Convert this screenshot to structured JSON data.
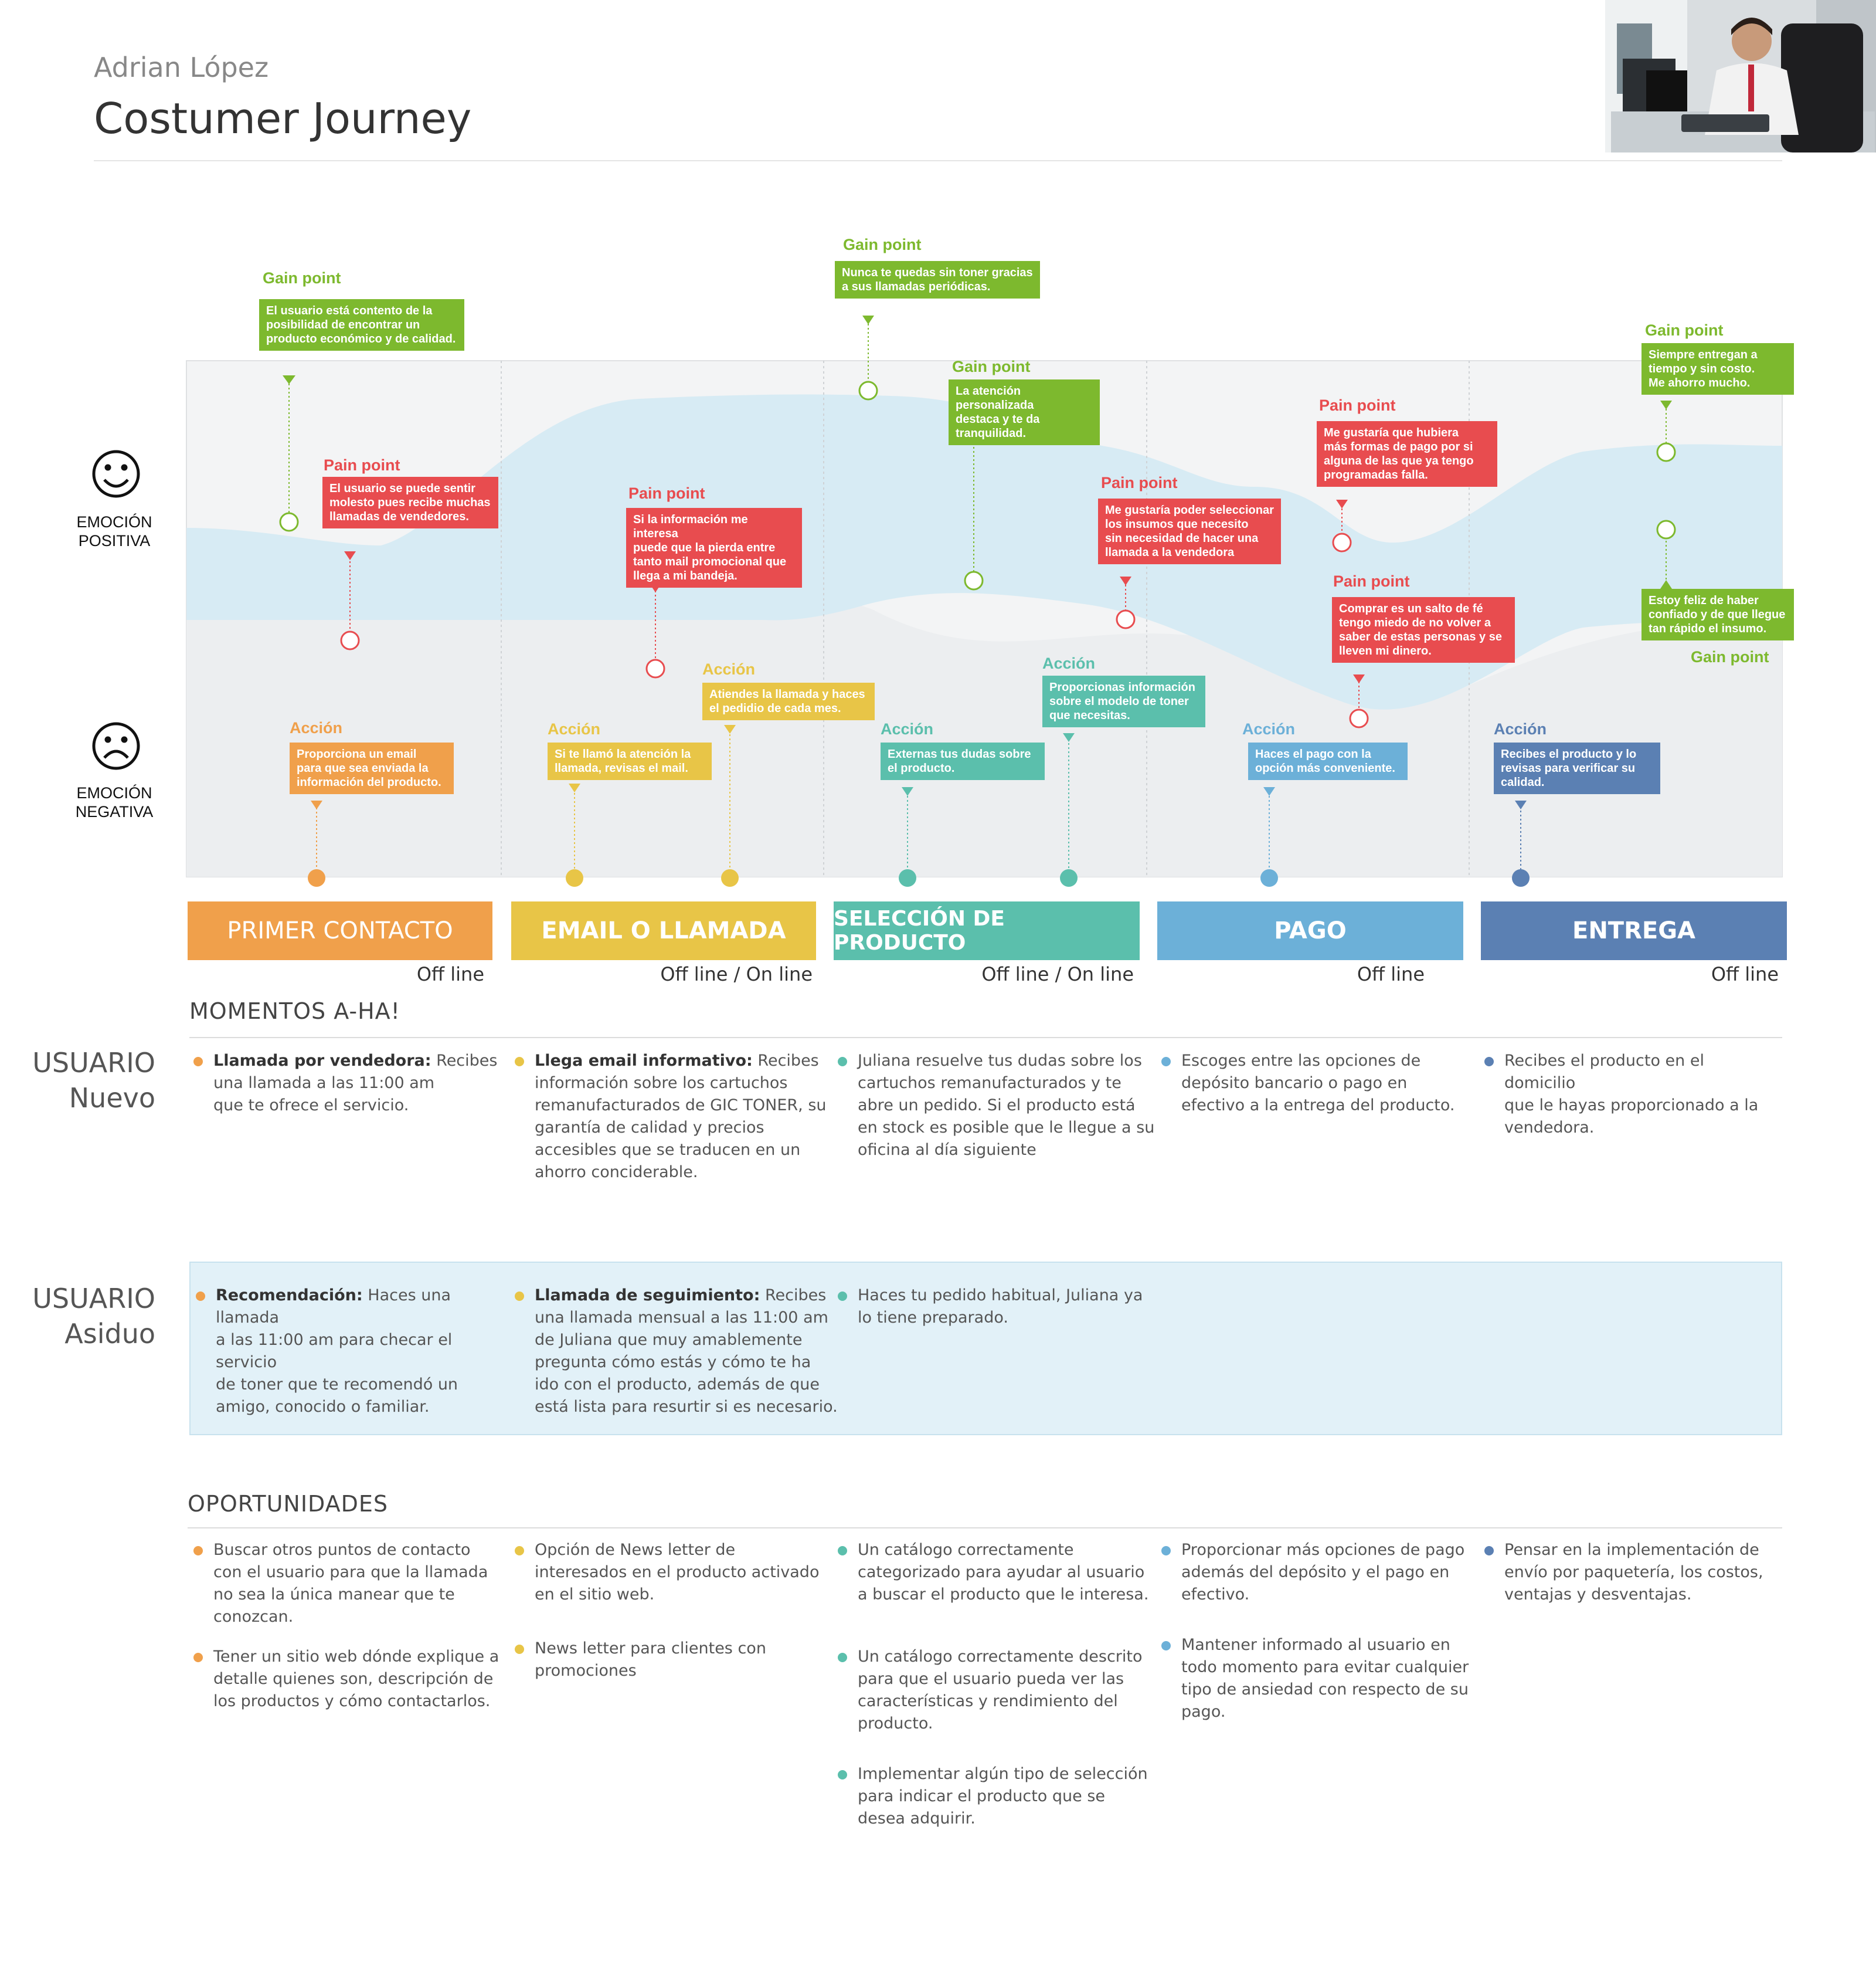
{
  "header": {
    "author": "Adrian López",
    "title": "Costumer Journey",
    "photo": "person-at-desk-photo"
  },
  "emotions": {
    "positive": [
      "EMOCIÓN",
      "POSITIVA"
    ],
    "negative": [
      "EMOCIÓN",
      "NEGATIVA"
    ]
  },
  "colors": {
    "primer_contacto": "#f0a04b",
    "email_llamada": "#e8c547",
    "seleccion": "#5bbfac",
    "pago": "#6cb0d8",
    "entrega": "#5b80b3",
    "gain": "#7db92e",
    "pain": "#e84c4f",
    "band": "#d7ebf4",
    "neutral": "#eceef0"
  },
  "callouts": [
    {
      "kind": "gain",
      "title": "Gain point",
      "lines": [
        "El usuario está contento de la",
        "posibilidad de encontrar un",
        "producto económico y de calidad."
      ]
    },
    {
      "kind": "pain",
      "title": "Pain point",
      "lines": [
        "El usuario se puede sentir",
        "molesto pues recibe muchas",
        "llamadas de vendedores."
      ]
    },
    {
      "kind": "action1",
      "title": "Acción",
      "lines": [
        "Proporciona un email",
        "para que sea enviada la",
        "información del producto."
      ]
    },
    {
      "kind": "action2",
      "title": "Acción",
      "lines": [
        "Si te llamó la atención la",
        "llamada, revisas el mail."
      ]
    },
    {
      "kind": "pain",
      "title": "Pain point",
      "lines": [
        "Si la información me interesa",
        "puede que la pierda entre",
        "tanto mail promocional que",
        "llega a mi bandeja."
      ]
    },
    {
      "kind": "action2",
      "title": "Acción",
      "lines": [
        "Atiendes la llamada y haces",
        "el pedidio de cada mes."
      ]
    },
    {
      "kind": "gain",
      "title": "Gain point",
      "lines": [
        "Nunca te quedas sin toner gracias",
        "a sus llamadas periódicas."
      ]
    },
    {
      "kind": "gain",
      "title": "Gain point",
      "lines": [
        "La atención personalizada",
        "destaca y te da",
        "tranquilidad."
      ]
    },
    {
      "kind": "action3",
      "title": "Acción",
      "lines": [
        "Externas tus dudas sobre",
        "el producto."
      ]
    },
    {
      "kind": "action3",
      "title": "Acción",
      "lines": [
        "Proporcionas información",
        "sobre el modelo de toner",
        "que necesitas."
      ]
    },
    {
      "kind": "pain",
      "title": "Pain point",
      "lines": [
        "Me gustaría poder seleccionar",
        "los insumos que necesito",
        "sin necesidad de hacer una",
        "llamada a la vendedora"
      ]
    },
    {
      "kind": "pain",
      "title": "Pain point",
      "lines": [
        "Me gustaría que hubiera",
        "más formas de pago por si",
        "alguna de las que ya tengo",
        "programadas falla."
      ]
    },
    {
      "kind": "pain",
      "title": "Pain point",
      "lines": [
        "Comprar es un salto de fé",
        "tengo miedo de no volver a",
        "saber de estas personas y se",
        "lleven mi dinero."
      ]
    },
    {
      "kind": "action4",
      "title": "Acción",
      "lines": [
        "Haces el pago con la",
        "opción más conveniente."
      ]
    },
    {
      "kind": "gain",
      "title": "Gain point",
      "lines": [
        "Siempre entregan a",
        "tiempo y sin costo.",
        "Me ahorro mucho."
      ]
    },
    {
      "kind": "gain",
      "title": "Gain point",
      "lines": [
        "Estoy feliz de haber",
        "confiado y de que llegue",
        "tan rápido el insumo."
      ]
    },
    {
      "kind": "action5",
      "title": "Acción",
      "lines": [
        "Recibes el producto y lo",
        "revisas para verificar su",
        "calidad."
      ]
    }
  ],
  "stages": [
    {
      "label": "PRIMER CONTACTO",
      "channel": "Off line"
    },
    {
      "label": "EMAIL O LLAMADA",
      "channel": "Off line / On line"
    },
    {
      "label": "SELECCIÓN DE PRODUCTO",
      "channel": "Off line / On line"
    },
    {
      "label": "PAGO",
      "channel": "Off line"
    },
    {
      "label": "ENTREGA",
      "channel": "Off line"
    }
  ],
  "momentos_title": "MOMENTOS  A-HA!",
  "usuario_nuevo": {
    "label": [
      "USUARIO",
      "Nuevo"
    ],
    "items": [
      {
        "bold": "Llamada por vendedora:",
        "lines": [
          " Recibes",
          "una llamada a las 11:00 am",
          "que te ofrece el servicio."
        ]
      },
      {
        "bold": "Llega email informativo:",
        "lines": [
          " Recibes",
          "información sobre los cartuchos",
          "remanufacturados de GIC TONER, su",
          "garantía de calidad y precios",
          "accesibles que se traducen en un",
          "ahorro conciderable."
        ]
      },
      {
        "bold": "",
        "lines": [
          "Juliana resuelve tus dudas sobre los",
          "cartuchos remanufacturados y te",
          "abre un pedido. Si el producto está",
          "en stock es posible que le llegue a su",
          "oficina al día siguiente"
        ]
      },
      {
        "bold": "",
        "lines": [
          "Escoges entre las opciones de",
          "depósito bancario o pago en",
          "efectivo a la entrega del producto."
        ]
      },
      {
        "bold": "",
        "lines": [
          "Recibes el producto en el domicilio",
          "que le hayas proporcionado a la",
          "vendedora."
        ]
      }
    ]
  },
  "usuario_asiduo": {
    "label": [
      "USUARIO",
      "Asiduo"
    ],
    "items": [
      {
        "bold": "Recomendación:",
        "lines": [
          " Haces una llamada",
          "a las 11:00 am para checar el servicio",
          "de toner que te recomendó un",
          "amigo, conocido o familiar."
        ]
      },
      {
        "bold": "Llamada de seguimiento:",
        "lines": [
          " Recibes",
          "una llamada mensual a las 11:00 am",
          "de Juliana que muy amablemente",
          "pregunta cómo estás y cómo te ha",
          "ido con el producto, además de que",
          "está lista para resurtir si es necesario."
        ]
      },
      {
        "bold": "",
        "lines": [
          "Haces tu pedido habitual, Juliana ya",
          "lo tiene preparado."
        ]
      }
    ]
  },
  "oportunidades_title": "OPORTUNIDADES",
  "oportunidades": [
    [
      {
        "lines": [
          "Buscar otros puntos de contacto",
          "con el usuario para que la llamada",
          "no sea la única manear que te",
          "conozcan."
        ]
      },
      {
        "lines": [
          "Tener un sitio web dónde explique a",
          "detalle quienes son, descripción de",
          "los productos y cómo contactarlos."
        ]
      }
    ],
    [
      {
        "lines": [
          "Opción de News letter de",
          "interesados en el producto activado",
          "en el sitio web."
        ]
      },
      {
        "lines": [
          "News letter para clientes con",
          "promociones"
        ]
      }
    ],
    [
      {
        "lines": [
          "Un catálogo correctamente",
          "categorizado para ayudar al usuario",
          "a buscar el producto que le interesa."
        ]
      },
      {
        "lines": [
          "Un catálogo correctamente descrito",
          "para que el usuario pueda ver las",
          "características y rendimiento del",
          "producto."
        ]
      },
      {
        "lines": [
          "Implementar algún tipo de selección",
          "para indicar el producto que se",
          "desea adquirir."
        ]
      }
    ],
    [
      {
        "lines": [
          "Proporcionar más opciones de pago",
          "además del depósito y el pago en",
          "efectivo."
        ]
      },
      {
        "lines": [
          "Mantener informado al usuario en",
          "todo momento para evitar cualquier",
          "tipo de ansiedad con respecto de su",
          "pago."
        ]
      }
    ],
    [
      {
        "lines": [
          "Pensar en la implementación de",
          "envío por paquetería, los costos,",
          "ventajas y desventajas."
        ]
      }
    ]
  ]
}
